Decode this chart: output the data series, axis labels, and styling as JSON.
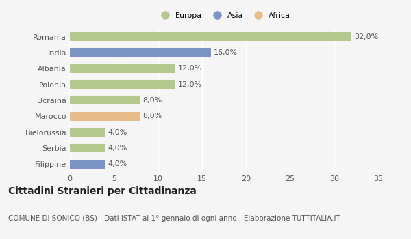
{
  "categories": [
    "Romania",
    "India",
    "Albania",
    "Polonia",
    "Ucraina",
    "Marocco",
    "Bielorussia",
    "Serbia",
    "Filippine"
  ],
  "values": [
    32.0,
    16.0,
    12.0,
    12.0,
    8.0,
    8.0,
    4.0,
    4.0,
    4.0
  ],
  "labels": [
    "32,0%",
    "16,0%",
    "12,0%",
    "12,0%",
    "8,0%",
    "8,0%",
    "4,0%",
    "4,0%",
    "4,0%"
  ],
  "colors": [
    "#b5c98e",
    "#7b93c5",
    "#b5c98e",
    "#b5c98e",
    "#b5c98e",
    "#e8bb8a",
    "#b5c98e",
    "#b5c98e",
    "#7b93c5"
  ],
  "legend_labels": [
    "Europa",
    "Asia",
    "Africa"
  ],
  "legend_colors": [
    "#b5c98e",
    "#7b93c5",
    "#e8bb8a"
  ],
  "xlim": [
    0,
    35
  ],
  "xticks": [
    0,
    5,
    10,
    15,
    20,
    25,
    30,
    35
  ],
  "title_main": "Cittadini Stranieri per Cittadinanza",
  "title_sub": "COMUNE DI SONICO (BS) - Dati ISTAT al 1° gennaio di ogni anno - Elaborazione TUTTITALIA.IT",
  "bg_color": "#f5f5f5",
  "grid_color": "#ffffff",
  "bar_height": 0.55,
  "label_fontsize": 8,
  "tick_fontsize": 8,
  "title_main_fontsize": 10,
  "title_sub_fontsize": 7.5
}
